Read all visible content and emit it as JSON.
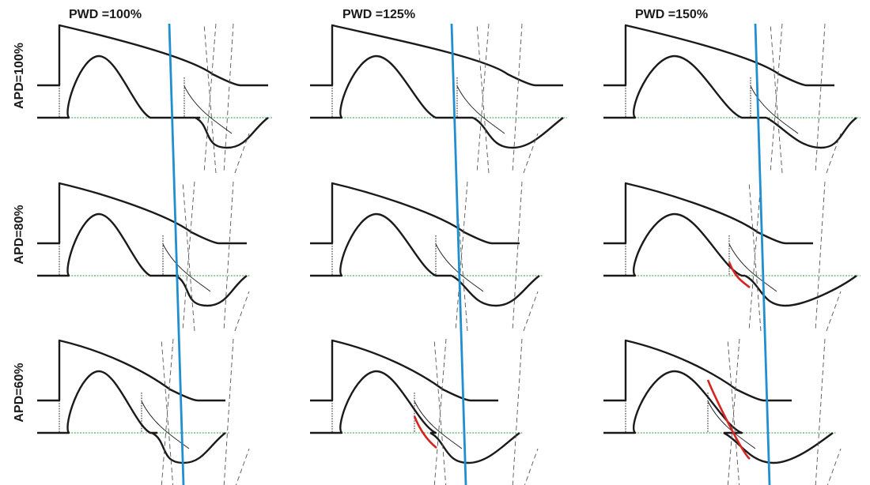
{
  "columns": [
    {
      "label": "PWD =100%"
    },
    {
      "label": "PWD =125%"
    },
    {
      "label": "PWD =150%"
    }
  ],
  "rows": [
    {
      "label": "APD=100%"
    },
    {
      "label": "APD=80%"
    },
    {
      "label": "APD=60%"
    }
  ],
  "colors": {
    "trace": "#1a1a1a",
    "baseline": "#2e9a3c",
    "timing_line": "#1f8fd0",
    "highlight": "#d6241e"
  }
}
